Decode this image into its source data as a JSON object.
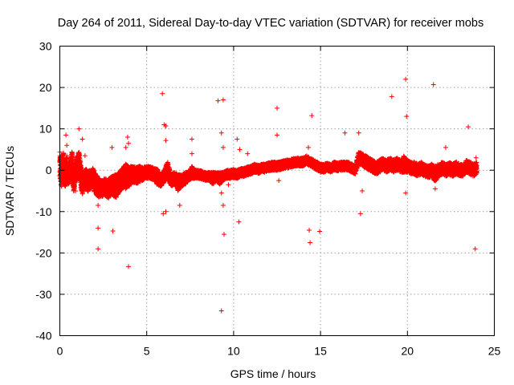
{
  "chart_data": {
    "type": "scatter",
    "title": "Day 264 of 2011, Sidereal Day-to-day VTEC variation (SDTVAR) for receiver mobs",
    "xlabel": "GPS time / hours",
    "ylabel": "SDTVAR / TECUs",
    "xlim": [
      0,
      25
    ],
    "ylim": [
      -40,
      30
    ],
    "xticks": [
      "0",
      "5",
      "10",
      "15",
      "20",
      "25"
    ],
    "yticks": [
      "-40",
      "-30",
      "-20",
      "-10",
      "0",
      "10",
      "20",
      "30"
    ],
    "grid": true,
    "legend": "none",
    "marker": "+",
    "color": "#ff0000",
    "series": [
      {
        "name": "SDTVAR",
        "dense_band": [
          [
            0.0,
            1.0,
            3.5
          ],
          [
            0.1,
            -1.0,
            3.0
          ],
          [
            0.2,
            2.0,
            2.5
          ],
          [
            0.3,
            -2.0,
            2.5
          ],
          [
            0.4,
            0.5,
            3.0
          ],
          [
            0.5,
            -1.5,
            2.0
          ],
          [
            0.6,
            0.0,
            2.5
          ],
          [
            0.7,
            1.5,
            3.0
          ],
          [
            0.8,
            -3.0,
            2.5
          ],
          [
            0.9,
            -0.5,
            2.0
          ],
          [
            1.0,
            1.0,
            2.5
          ],
          [
            1.1,
            2.0,
            2.5
          ],
          [
            1.2,
            -1.0,
            3.0
          ],
          [
            1.3,
            -4.0,
            2.0
          ],
          [
            1.4,
            -2.0,
            2.0
          ],
          [
            1.5,
            -1.5,
            2.0
          ],
          [
            1.6,
            -3.0,
            2.5
          ],
          [
            1.7,
            -2.0,
            2.0
          ],
          [
            1.8,
            -2.5,
            2.0
          ],
          [
            1.9,
            -1.5,
            2.0
          ],
          [
            2.0,
            -3.0,
            2.5
          ],
          [
            2.2,
            -4.0,
            2.5
          ],
          [
            2.4,
            -4.5,
            2.0
          ],
          [
            2.6,
            -4.0,
            2.0
          ],
          [
            2.8,
            -4.5,
            2.5
          ],
          [
            3.0,
            -3.5,
            2.0
          ],
          [
            3.2,
            -4.0,
            3.0
          ],
          [
            3.4,
            -3.0,
            2.5
          ],
          [
            3.6,
            -2.0,
            2.5
          ],
          [
            3.8,
            -1.5,
            3.0
          ],
          [
            4.0,
            -1.5,
            2.5
          ],
          [
            4.2,
            -1.0,
            2.0
          ],
          [
            4.4,
            -1.2,
            2.0
          ],
          [
            4.6,
            -1.0,
            2.0
          ],
          [
            4.8,
            -0.8,
            1.5
          ],
          [
            5.0,
            -0.5,
            1.5
          ],
          [
            5.2,
            -0.5,
            1.5
          ],
          [
            5.4,
            -1.0,
            1.5
          ],
          [
            5.6,
            -1.5,
            2.0
          ],
          [
            5.8,
            -2.5,
            1.5
          ],
          [
            6.0,
            -1.5,
            1.5
          ],
          [
            6.2,
            0.0,
            2.0
          ],
          [
            6.4,
            -2.5,
            1.5
          ],
          [
            6.6,
            -2.0,
            1.5
          ],
          [
            6.8,
            -3.0,
            2.0
          ],
          [
            7.0,
            -2.5,
            1.5
          ],
          [
            7.2,
            -2.0,
            1.5
          ],
          [
            7.4,
            -1.5,
            1.0
          ],
          [
            7.6,
            -0.5,
            1.5
          ],
          [
            7.8,
            -1.0,
            1.0
          ],
          [
            8.0,
            -1.0,
            1.0
          ],
          [
            8.2,
            -1.2,
            1.0
          ],
          [
            8.4,
            -1.5,
            1.0
          ],
          [
            8.6,
            -1.5,
            1.0
          ],
          [
            8.8,
            -2.0,
            1.5
          ],
          [
            9.0,
            -1.5,
            1.0
          ],
          [
            9.2,
            -2.0,
            1.5
          ],
          [
            9.4,
            -1.5,
            1.0
          ],
          [
            9.6,
            -1.0,
            1.0
          ],
          [
            9.8,
            -1.0,
            1.0
          ],
          [
            10.0,
            -0.8,
            1.0
          ],
          [
            10.2,
            -1.0,
            1.0
          ],
          [
            10.4,
            -0.5,
            1.0
          ],
          [
            10.6,
            -0.5,
            1.0
          ],
          [
            10.8,
            -0.2,
            1.0
          ],
          [
            11.0,
            0.0,
            1.0
          ],
          [
            11.2,
            0.5,
            1.0
          ],
          [
            11.4,
            0.2,
            1.0
          ],
          [
            11.6,
            0.5,
            1.0
          ],
          [
            11.8,
            0.5,
            1.0
          ],
          [
            12.0,
            0.8,
            1.0
          ],
          [
            12.2,
            1.0,
            1.0
          ],
          [
            12.4,
            1.0,
            1.0
          ],
          [
            12.6,
            1.0,
            1.0
          ],
          [
            12.8,
            1.2,
            1.0
          ],
          [
            13.0,
            1.5,
            1.0
          ],
          [
            13.2,
            1.5,
            1.0
          ],
          [
            13.4,
            1.8,
            1.0
          ],
          [
            13.6,
            2.0,
            1.0
          ],
          [
            13.8,
            2.0,
            1.0
          ],
          [
            14.0,
            2.0,
            1.0
          ],
          [
            14.2,
            2.5,
            1.0
          ],
          [
            14.4,
            2.0,
            1.0
          ],
          [
            14.6,
            1.5,
            1.0
          ],
          [
            14.8,
            1.0,
            1.0
          ],
          [
            15.0,
            0.5,
            1.0
          ],
          [
            15.2,
            0.5,
            1.0
          ],
          [
            15.4,
            0.8,
            1.0
          ],
          [
            15.6,
            0.5,
            1.0
          ],
          [
            15.8,
            1.0,
            1.0
          ],
          [
            16.0,
            0.8,
            1.0
          ],
          [
            16.2,
            1.0,
            1.0
          ],
          [
            16.4,
            1.0,
            1.0
          ],
          [
            16.6,
            1.0,
            1.0
          ],
          [
            16.8,
            0.5,
            1.0
          ],
          [
            17.0,
            0.0,
            1.0
          ],
          [
            17.2,
            3.0,
            1.5
          ],
          [
            17.4,
            2.5,
            1.5
          ],
          [
            17.6,
            2.0,
            1.5
          ],
          [
            17.8,
            1.5,
            1.5
          ],
          [
            18.0,
            1.0,
            1.5
          ],
          [
            18.2,
            0.5,
            1.5
          ],
          [
            18.4,
            1.0,
            1.5
          ],
          [
            18.6,
            1.5,
            1.5
          ],
          [
            18.8,
            1.0,
            1.5
          ],
          [
            19.0,
            1.5,
            1.5
          ],
          [
            19.2,
            1.0,
            1.5
          ],
          [
            19.4,
            1.5,
            1.5
          ],
          [
            19.6,
            1.0,
            1.5
          ],
          [
            19.8,
            1.5,
            2.0
          ],
          [
            20.0,
            1.0,
            1.5
          ],
          [
            20.2,
            0.5,
            1.5
          ],
          [
            20.4,
            0.5,
            1.5
          ],
          [
            20.6,
            0.0,
            1.5
          ],
          [
            20.8,
            0.5,
            1.5
          ],
          [
            21.0,
            0.0,
            1.5
          ],
          [
            21.2,
            -0.5,
            1.5
          ],
          [
            21.4,
            0.0,
            1.5
          ],
          [
            21.6,
            -1.0,
            2.0
          ],
          [
            21.8,
            0.0,
            1.5
          ],
          [
            22.0,
            0.5,
            1.5
          ],
          [
            22.2,
            0.0,
            1.5
          ],
          [
            22.4,
            0.5,
            1.5
          ],
          [
            22.6,
            0.0,
            1.5
          ],
          [
            22.8,
            0.5,
            1.5
          ],
          [
            23.0,
            0.0,
            1.5
          ],
          [
            23.2,
            0.0,
            1.5
          ],
          [
            23.4,
            1.0,
            1.5
          ],
          [
            23.6,
            0.5,
            1.5
          ],
          [
            23.8,
            0.0,
            1.5
          ],
          [
            24.0,
            0.5,
            1.5
          ]
        ],
        "dense_band_columns": [
          "x_hours",
          "center_tecu",
          "half_spread_tecu"
        ],
        "outliers": [
          [
            0.35,
            8.5
          ],
          [
            0.4,
            6.0
          ],
          [
            0.9,
            -5.0
          ],
          [
            1.1,
            10.0
          ],
          [
            1.3,
            7.5
          ],
          [
            1.45,
            3.5
          ],
          [
            2.2,
            -8.5
          ],
          [
            2.2,
            -14.0
          ],
          [
            2.2,
            -19.0
          ],
          [
            3.0,
            5.5
          ],
          [
            3.05,
            -14.7
          ],
          [
            3.8,
            5.5
          ],
          [
            3.9,
            8.0
          ],
          [
            3.95,
            6.5
          ],
          [
            3.95,
            -23.3
          ],
          [
            5.9,
            18.5
          ],
          [
            6.0,
            11.0
          ],
          [
            6.1,
            10.7
          ],
          [
            6.1,
            -10.0
          ],
          [
            5.95,
            -10.5
          ],
          [
            6.1,
            7.2
          ],
          [
            6.9,
            -8.5
          ],
          [
            7.6,
            7.5
          ],
          [
            7.6,
            4.0
          ],
          [
            9.1,
            16.8
          ],
          [
            9.4,
            17.0
          ],
          [
            9.3,
            9.0
          ],
          [
            9.4,
            5.5
          ],
          [
            9.3,
            -5.5
          ],
          [
            9.4,
            -8.5
          ],
          [
            9.3,
            -34.0
          ],
          [
            9.45,
            -15.5
          ],
          [
            9.7,
            -3.5
          ],
          [
            10.3,
            -12.5
          ],
          [
            10.35,
            5.0
          ],
          [
            10.2,
            7.5
          ],
          [
            10.8,
            4.0
          ],
          [
            12.5,
            15.0
          ],
          [
            12.5,
            8.5
          ],
          [
            12.6,
            -2.5
          ],
          [
            14.3,
            5.5
          ],
          [
            14.35,
            -14.5
          ],
          [
            14.4,
            -17.5
          ],
          [
            14.5,
            13.2
          ],
          [
            14.8,
            2.0
          ],
          [
            14.95,
            -14.8
          ],
          [
            16.4,
            9.0
          ],
          [
            17.2,
            9.0
          ],
          [
            17.3,
            -10.5
          ],
          [
            17.4,
            -5.0
          ],
          [
            19.1,
            17.8
          ],
          [
            19.9,
            22.0
          ],
          [
            19.95,
            13.0
          ],
          [
            19.9,
            -5.5
          ],
          [
            21.5,
            20.7
          ],
          [
            22.2,
            5.5
          ],
          [
            21.6,
            -4.5
          ],
          [
            23.5,
            10.5
          ],
          [
            23.9,
            -19.0
          ],
          [
            23.95,
            3.0
          ]
        ]
      }
    ]
  }
}
